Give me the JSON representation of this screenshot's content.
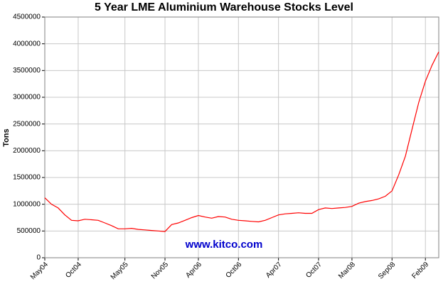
{
  "chart_data": {
    "type": "line",
    "title": "5 Year LME Aluminium Warehouse Stocks Level",
    "y_label": "Tons",
    "watermark": "www.kitco.com",
    "categories": [
      "May04",
      null,
      null,
      null,
      null,
      "Oct04",
      null,
      null,
      null,
      null,
      null,
      null,
      "May05",
      null,
      null,
      null,
      null,
      null,
      "Nov05",
      null,
      null,
      null,
      null,
      "Apr06",
      null,
      null,
      null,
      null,
      null,
      "Oct06",
      null,
      null,
      null,
      null,
      null,
      "Apr07",
      null,
      null,
      null,
      null,
      null,
      "Oct07",
      null,
      null,
      null,
      null,
      "Mar08",
      null,
      null,
      null,
      null,
      null,
      "Sep08",
      null,
      null,
      null,
      null,
      "Feb09",
      null,
      null
    ],
    "series": [
      {
        "name": "Aluminium",
        "color": "#ff0000",
        "values": [
          1120000,
          1000000,
          930000,
          800000,
          700000,
          690000,
          720000,
          710000,
          700000,
          650000,
          600000,
          540000,
          540000,
          550000,
          530000,
          520000,
          510000,
          500000,
          490000,
          620000,
          650000,
          700000,
          750000,
          790000,
          760000,
          740000,
          770000,
          760000,
          720000,
          700000,
          690000,
          680000,
          670000,
          700000,
          750000,
          800000,
          820000,
          830000,
          840000,
          830000,
          830000,
          900000,
          930000,
          920000,
          930000,
          940000,
          960000,
          1020000,
          1050000,
          1070000,
          1100000,
          1150000,
          1250000,
          1550000,
          1900000,
          2400000,
          2900000,
          3300000,
          3600000,
          3850000
        ]
      }
    ],
    "ylim": [
      0,
      4500000
    ],
    "yticks": [
      0,
      500000,
      1000000,
      1500000,
      2000000,
      2500000,
      3000000,
      3500000,
      4000000,
      4500000
    ],
    "grid": true
  }
}
